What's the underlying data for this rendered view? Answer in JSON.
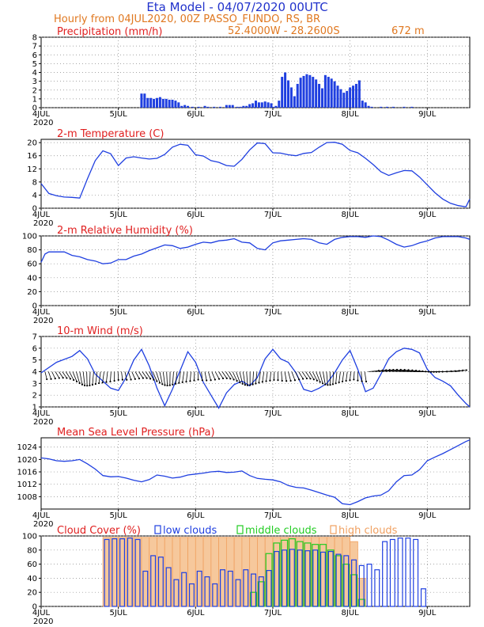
{
  "header": {
    "title": "Eta Model - 04/07/2020 00UTC",
    "subtitle": "Hourly from 04JUL2020, 00Z  PASSO_FUNDO, RS, BR",
    "coords": "52.4000W - 28.2600S",
    "elevation": "672  m",
    "colors": {
      "title": "#2233cc",
      "subtitle": "#e07820",
      "panel_title": "#e02020",
      "series": "#1f3fe0",
      "low": "#1f3fe0",
      "middle": "#22cc22",
      "high": "#f0a060"
    }
  },
  "x_axis": {
    "ticks": [
      {
        "label": "4JUL",
        "day": 0
      },
      {
        "label": "5JUL",
        "day": 1
      },
      {
        "label": "6JUL",
        "day": 2
      },
      {
        "label": "7JUL",
        "day": 3
      },
      {
        "label": "8JUL",
        "day": 4
      },
      {
        "label": "9JUL",
        "day": 5
      }
    ],
    "year_label": "2020",
    "range_days": [
      0,
      5.55
    ]
  },
  "chart_data": [
    {
      "type": "bar",
      "title": "Precipitation (mm/h)",
      "ylim": [
        0,
        8
      ],
      "yticks": [
        0,
        1,
        2,
        3,
        4,
        5,
        6,
        7,
        8
      ],
      "x": [
        1.3,
        1.34,
        1.38,
        1.42,
        1.46,
        1.5,
        1.54,
        1.58,
        1.62,
        1.66,
        1.7,
        1.74,
        1.78,
        1.82,
        1.86,
        1.9,
        1.96,
        2.04,
        2.12,
        2.16,
        2.24,
        2.32,
        2.4,
        2.44,
        2.48,
        2.54,
        2.58,
        2.62,
        2.66,
        2.7,
        2.74,
        2.78,
        2.82,
        2.86,
        2.9,
        2.94,
        2.98,
        3.0,
        3.04,
        3.08,
        3.12,
        3.16,
        3.2,
        3.24,
        3.28,
        3.32,
        3.36,
        3.4,
        3.44,
        3.48,
        3.52,
        3.56,
        3.6,
        3.64,
        3.68,
        3.72,
        3.76,
        3.8,
        3.84,
        3.88,
        3.92,
        3.96,
        4.0,
        4.04,
        4.08,
        4.12,
        4.16,
        4.2,
        4.24,
        4.28,
        4.4,
        4.48,
        4.56,
        4.7,
        4.8
      ],
      "values": [
        1.6,
        1.6,
        1.1,
        1.1,
        1.0,
        1.1,
        1.2,
        1.0,
        1.0,
        0.9,
        0.9,
        0.8,
        0.6,
        0.2,
        0.3,
        0.2,
        0.1,
        0.1,
        0.2,
        0.1,
        0.1,
        0.1,
        0.3,
        0.3,
        0.3,
        0.1,
        0.1,
        0.2,
        0.2,
        0.4,
        0.5,
        0.8,
        0.6,
        0.6,
        0.7,
        0.6,
        0.5,
        0.1,
        0.2,
        0.8,
        3.5,
        4.0,
        3.1,
        2.3,
        1.3,
        2.7,
        3.4,
        3.6,
        3.8,
        3.7,
        3.5,
        3.2,
        2.7,
        2.2,
        3.7,
        3.5,
        3.3,
        3.0,
        2.5,
        2.1,
        1.7,
        1.9,
        2.3,
        2.5,
        2.7,
        3.1,
        0.8,
        0.6,
        0.2,
        0.1,
        0.1,
        0.1,
        0.1,
        0.1,
        0.1
      ]
    },
    {
      "type": "line",
      "title": "2-m Temperature (C)",
      "ylim": [
        0,
        21
      ],
      "yticks": [
        0,
        4,
        8,
        12,
        16,
        20
      ],
      "x": [
        0,
        0.1,
        0.2,
        0.3,
        0.4,
        0.5,
        0.6,
        0.7,
        0.8,
        0.9,
        1.0,
        1.1,
        1.2,
        1.3,
        1.4,
        1.5,
        1.6,
        1.7,
        1.8,
        1.9,
        2.0,
        2.1,
        2.2,
        2.3,
        2.4,
        2.5,
        2.6,
        2.7,
        2.8,
        2.9,
        3.0,
        3.1,
        3.2,
        3.3,
        3.4,
        3.5,
        3.6,
        3.7,
        3.8,
        3.9,
        4.0,
        4.1,
        4.2,
        4.3,
        4.4,
        4.5,
        4.6,
        4.7,
        4.8,
        4.9,
        5.0,
        5.1,
        5.2,
        5.3,
        5.4,
        5.5,
        5.55
      ],
      "values": [
        7.5,
        4.5,
        3.8,
        3.4,
        3.3,
        3.1,
        9.0,
        14.5,
        17.5,
        16.6,
        13.0,
        15.3,
        15.7,
        15.3,
        15.0,
        15.2,
        16.4,
        18.6,
        19.5,
        19.2,
        16.3,
        15.9,
        14.5,
        14.0,
        13.0,
        12.8,
        14.9,
        17.8,
        19.9,
        19.7,
        16.9,
        16.8,
        16.3,
        16.0,
        16.7,
        17.0,
        18.6,
        20.0,
        20.1,
        19.5,
        17.6,
        16.9,
        15.2,
        13.3,
        11.1,
        10.0,
        10.8,
        11.5,
        11.4,
        9.5,
        7.1,
        4.7,
        2.8,
        1.5,
        0.8,
        0.4,
        2.8
      ]
    },
    {
      "type": "line",
      "title": "2-m Relative Humidity (%)",
      "ylim": [
        0,
        100
      ],
      "yticks": [
        0,
        20,
        40,
        60,
        80,
        100
      ],
      "x": [
        0,
        0.05,
        0.1,
        0.3,
        0.4,
        0.5,
        0.6,
        0.7,
        0.8,
        0.9,
        1.0,
        1.1,
        1.2,
        1.3,
        1.4,
        1.5,
        1.6,
        1.7,
        1.8,
        1.9,
        2.0,
        2.1,
        2.2,
        2.3,
        2.4,
        2.5,
        2.6,
        2.7,
        2.8,
        2.9,
        3.0,
        3.1,
        3.2,
        3.3,
        3.4,
        3.5,
        3.6,
        3.7,
        3.8,
        3.9,
        4.0,
        4.1,
        4.2,
        4.3,
        4.4,
        4.5,
        4.6,
        4.7,
        4.8,
        4.9,
        5.0,
        5.1,
        5.2,
        5.3,
        5.4,
        5.5,
        5.55
      ],
      "values": [
        62,
        74,
        77,
        77,
        72,
        70,
        66,
        64,
        60,
        61,
        66,
        66,
        71,
        74,
        79,
        83,
        87,
        86,
        82,
        84,
        88,
        91,
        90,
        93,
        94,
        96,
        91,
        90,
        82,
        80,
        90,
        93,
        94,
        95,
        96,
        95,
        90,
        88,
        95,
        98,
        99,
        99,
        98,
        100,
        99,
        94,
        88,
        84,
        86,
        90,
        93,
        97,
        99,
        99,
        99,
        97,
        95
      ]
    },
    {
      "type": "line",
      "title": "10-m Wind (m/s)",
      "ylim": [
        1,
        7
      ],
      "yticks": [
        1,
        2,
        3,
        4,
        5,
        6,
        7
      ],
      "x": [
        0,
        0.2,
        0.4,
        0.5,
        0.6,
        0.7,
        0.8,
        0.9,
        1.0,
        1.1,
        1.2,
        1.3,
        1.4,
        1.5,
        1.6,
        1.7,
        1.8,
        1.9,
        2.0,
        2.1,
        2.2,
        2.3,
        2.4,
        2.5,
        2.6,
        2.7,
        2.8,
        2.9,
        3.0,
        3.1,
        3.2,
        3.3,
        3.4,
        3.5,
        3.6,
        3.7,
        3.8,
        3.9,
        4.0,
        4.1,
        4.2,
        4.3,
        4.4,
        4.5,
        4.6,
        4.7,
        4.8,
        4.9,
        5.0,
        5.1,
        5.2,
        5.3,
        5.4,
        5.5,
        5.55
      ],
      "values": [
        3.9,
        4.8,
        5.3,
        5.8,
        5.1,
        3.8,
        3.2,
        2.6,
        2.4,
        3.5,
        5.0,
        5.9,
        4.5,
        2.6,
        1.1,
        2.5,
        4.1,
        5.7,
        4.8,
        3.1,
        2.0,
        0.9,
        2.2,
        2.9,
        3.2,
        2.8,
        3.5,
        5.1,
        5.9,
        5.1,
        4.8,
        3.9,
        2.5,
        2.3,
        2.6,
        3.0,
        3.9,
        5.0,
        5.8,
        4.2,
        2.3,
        2.6,
        3.8,
        5.1,
        5.7,
        6.0,
        5.9,
        5.6,
        4.2,
        3.5,
        3.2,
        2.8,
        2.0,
        1.3,
        1.0
      ],
      "barb_directions": "arrows plotted along y=4 line"
    },
    {
      "type": "line",
      "title": "Mean Sea Level Pressure (hPa)",
      "ylim": [
        1004,
        1027
      ],
      "yticks": [
        1008,
        1012,
        1016,
        1020,
        1024
      ],
      "x": [
        0,
        0.1,
        0.2,
        0.3,
        0.4,
        0.5,
        0.6,
        0.7,
        0.8,
        0.9,
        1.0,
        1.1,
        1.2,
        1.3,
        1.4,
        1.5,
        1.6,
        1.7,
        1.8,
        1.9,
        2.0,
        2.1,
        2.2,
        2.3,
        2.4,
        2.5,
        2.6,
        2.7,
        2.8,
        2.9,
        3.0,
        3.1,
        3.2,
        3.3,
        3.4,
        3.5,
        3.6,
        3.7,
        3.8,
        3.9,
        4.0,
        4.1,
        4.2,
        4.3,
        4.4,
        4.5,
        4.6,
        4.7,
        4.8,
        4.9,
        5.0,
        5.1,
        5.2,
        5.3,
        5.4,
        5.5,
        5.55
      ],
      "values": [
        1020.5,
        1020.2,
        1019.6,
        1019.4,
        1019.6,
        1020.0,
        1018.6,
        1016.9,
        1014.8,
        1014.4,
        1014.5,
        1014.0,
        1013.3,
        1012.8,
        1013.5,
        1015.0,
        1014.6,
        1014.0,
        1014.3,
        1015.0,
        1015.3,
        1015.6,
        1016.0,
        1016.2,
        1015.8,
        1015.9,
        1016.3,
        1014.8,
        1013.9,
        1013.6,
        1013.4,
        1012.8,
        1011.6,
        1011.0,
        1010.8,
        1010.1,
        1009.3,
        1008.5,
        1007.8,
        1005.7,
        1005.4,
        1006.4,
        1007.6,
        1008.2,
        1008.5,
        1009.9,
        1012.8,
        1014.8,
        1015.0,
        1016.7,
        1019.6,
        1020.8,
        1021.9,
        1023.2,
        1024.5,
        1025.8,
        1026.3
      ]
    },
    {
      "type": "bar",
      "title": "Cloud Cover (%)",
      "legend": [
        "low clouds",
        "middle clouds",
        "high clouds"
      ],
      "ylim": [
        0,
        100
      ],
      "yticks": [
        0,
        20,
        40,
        60,
        80,
        100
      ],
      "x": [
        0.85,
        0.95,
        1.05,
        1.15,
        1.25,
        1.35,
        1.45,
        1.55,
        1.65,
        1.75,
        1.85,
        1.95,
        2.05,
        2.15,
        2.25,
        2.35,
        2.45,
        2.55,
        2.65,
        2.75,
        2.85,
        2.95,
        3.05,
        3.15,
        3.25,
        3.35,
        3.45,
        3.55,
        3.65,
        3.75,
        3.85,
        3.95,
        4.05,
        4.15,
        4.25,
        4.35,
        4.45,
        4.55,
        4.65,
        4.75,
        4.85,
        4.95
      ],
      "series": [
        {
          "name": "low clouds",
          "values": [
            95,
            96,
            96,
            97,
            95,
            50,
            72,
            70,
            55,
            38,
            48,
            32,
            50,
            42,
            32,
            52,
            50,
            38,
            52,
            46,
            42,
            51,
            78,
            80,
            81,
            80,
            79,
            80,
            77,
            78,
            74,
            72,
            66,
            58,
            60,
            52,
            92,
            95,
            97,
            97,
            95,
            25
          ]
        },
        {
          "name": "middle clouds",
          "values": [
            0,
            0,
            0,
            0,
            0,
            0,
            0,
            0,
            0,
            0,
            0,
            0,
            0,
            0,
            0,
            0,
            0,
            0,
            0,
            20,
            35,
            75,
            90,
            94,
            96,
            92,
            90,
            88,
            88,
            80,
            72,
            60,
            45,
            10,
            0,
            0,
            0,
            0,
            0,
            0,
            0,
            0
          ]
        },
        {
          "name": "high clouds",
          "values": [
            98,
            98,
            98,
            98,
            98,
            98,
            98,
            98,
            98,
            98,
            98,
            98,
            98,
            98,
            98,
            98,
            98,
            98,
            98,
            98,
            98,
            98,
            98,
            98,
            98,
            98,
            98,
            98,
            98,
            98,
            98,
            98,
            92,
            40,
            0,
            0,
            0,
            0,
            0,
            0,
            0,
            0
          ]
        }
      ]
    }
  ]
}
